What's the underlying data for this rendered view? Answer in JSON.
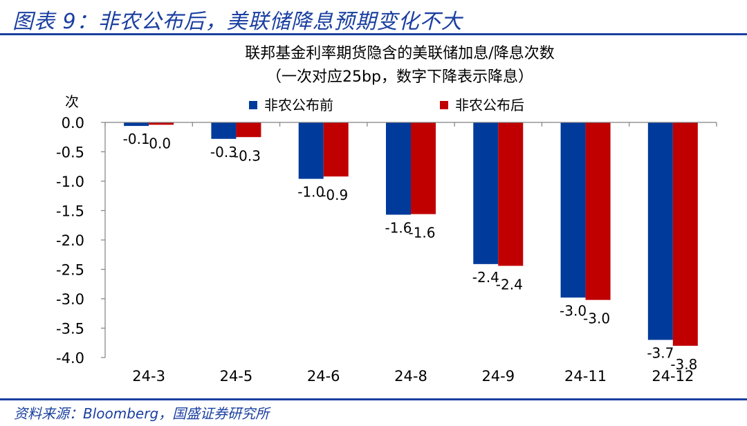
{
  "figure": {
    "title": "图表 9：非农公布后，美联储降息预期变化不大",
    "source": "资料来源：Bloomberg，国盛证券研究所"
  },
  "chart_data": {
    "type": "bar",
    "title": "联邦基金利率期货隐含的美联储加息/降息次数",
    "subtitle": "（一次对应25bp，数字下降表示降息）",
    "ylabel": "次",
    "xlabel": "",
    "categories": [
      "24-3",
      "24-5",
      "24-6",
      "24-8",
      "24-9",
      "24-11",
      "24-12"
    ],
    "series": [
      {
        "name": "非农公布前",
        "color": "#003a9b",
        "values": [
          -0.06,
          -0.28,
          -0.96,
          -1.57,
          -2.41,
          -2.98,
          -3.7
        ],
        "labels": [
          "-0.1",
          "-0.3",
          "-1.0",
          "-1.6",
          "-2.4",
          "-3.0",
          "-3.7"
        ]
      },
      {
        "name": "非农公布后",
        "color": "#c00000",
        "values": [
          -0.04,
          -0.25,
          -0.92,
          -1.56,
          -2.44,
          -3.02,
          -3.8
        ],
        "labels": [
          "0.0",
          "-0.3",
          "-0.9",
          "-1.6",
          "-2.4",
          "-3.0",
          "-3.8"
        ]
      }
    ],
    "ylim": [
      -4.0,
      0.0
    ],
    "yticks": [
      "0.0",
      "-0.5",
      "-1.0",
      "-1.5",
      "-2.0",
      "-2.5",
      "-3.0",
      "-3.5",
      "-4.0"
    ],
    "grid": false,
    "legend": "top"
  }
}
